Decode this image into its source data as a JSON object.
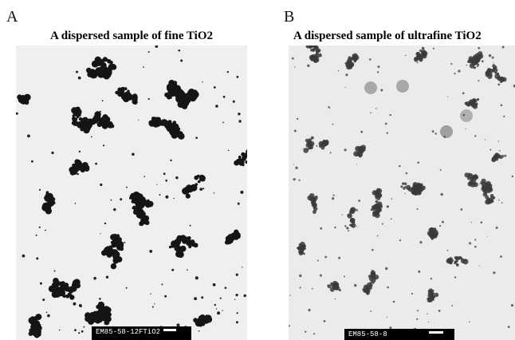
{
  "panels": [
    {
      "label": "A",
      "title": "A dispersed sample of fine TiO2",
      "scale_label": "EM85-58-12FTiO2"
    },
    {
      "label": "B",
      "title": "A dispersed sample of ultrafine TiO2",
      "scale_label": "EM85-58-8"
    }
  ]
}
